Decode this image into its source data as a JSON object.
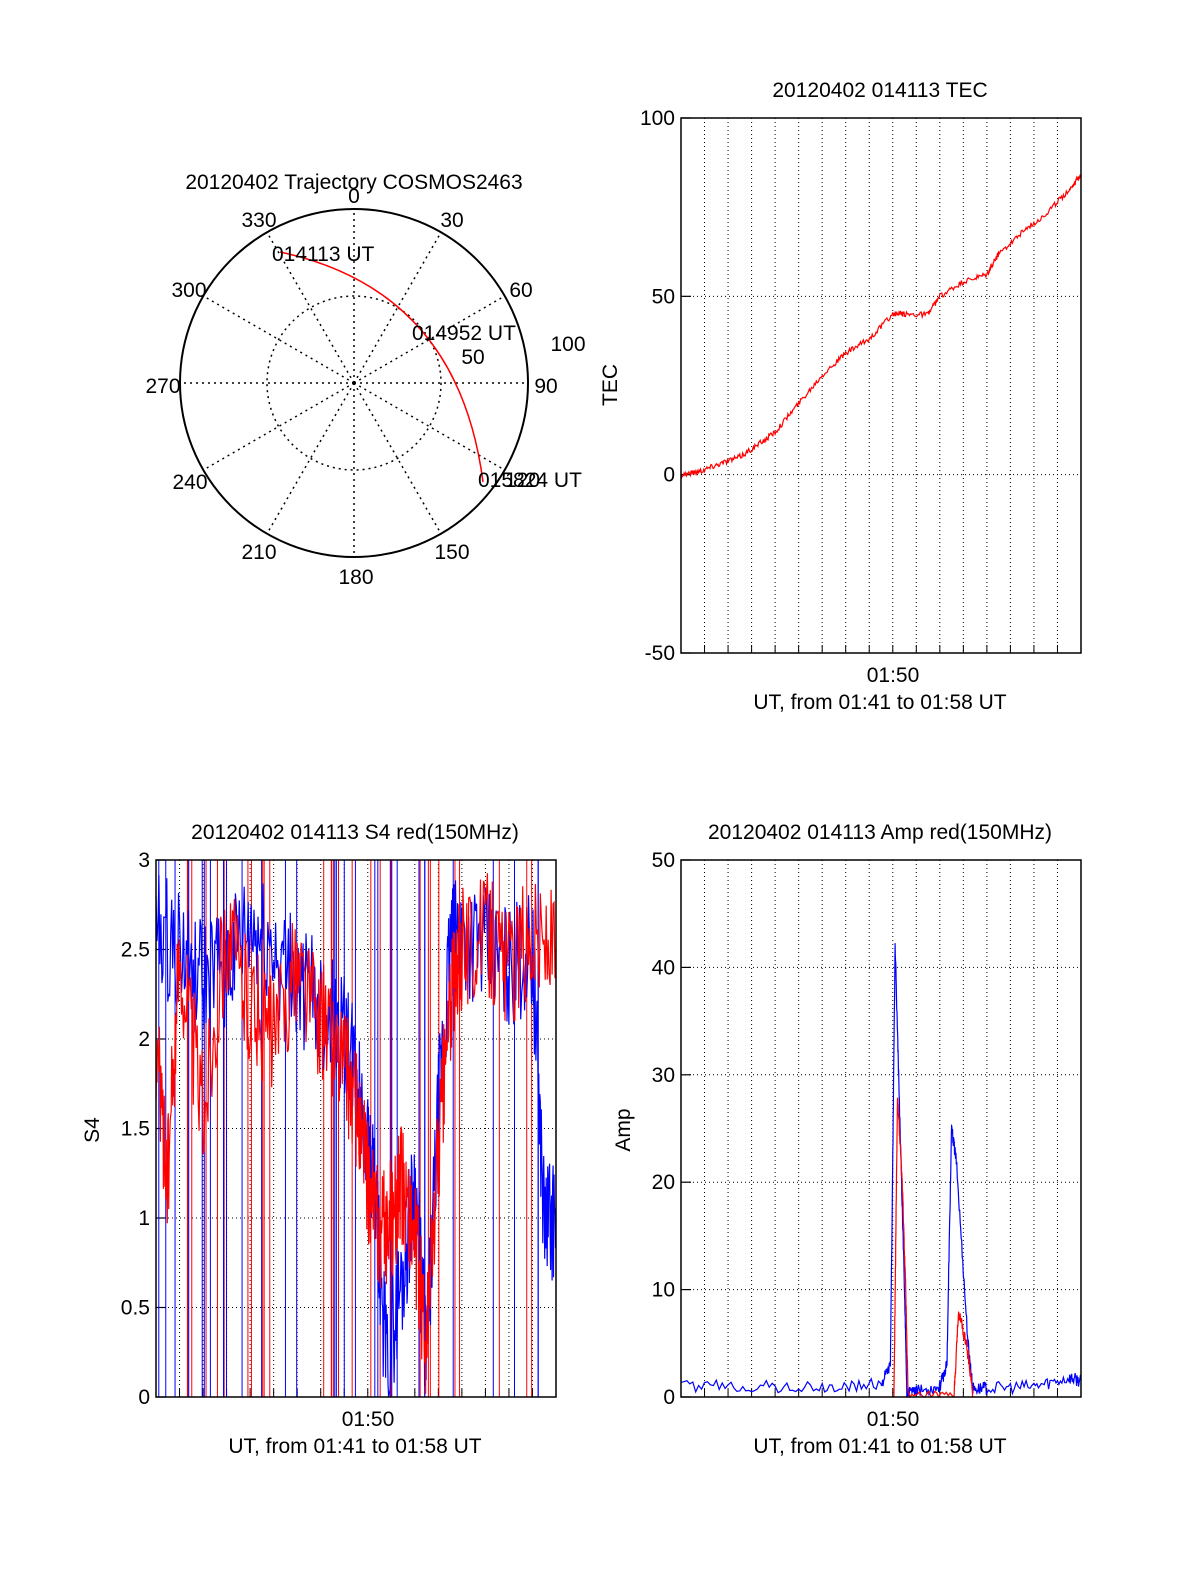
{
  "chart_data": [
    {
      "type": "polar-trajectory",
      "title": "20120402 Trajectory COSMOS2463",
      "azimuth_labels": [
        "0",
        "30",
        "60",
        "90",
        "150",
        "180",
        "210",
        "240",
        "270",
        "300",
        "330"
      ],
      "radial_labels": [
        "50",
        "100"
      ],
      "start_label": "014113 UT",
      "mid_label": "014952 UT",
      "end_label": "015824 UT",
      "end_overlap_label": "120",
      "colors": {
        "trajectory": "#ff0000",
        "axes": "#000000"
      }
    },
    {
      "type": "line",
      "title": "20120402 014113 TEC",
      "ylabel": "TEC",
      "xlabel": "UT, from 01:41 to 01:58 UT",
      "x_tick_label": "01:50",
      "yticks": [
        "100",
        "50",
        "0",
        "-50"
      ],
      "ylim": [
        -50,
        100
      ],
      "xlim_minutes": [
        0,
        17
      ],
      "series": [
        {
          "color": "#ff0000",
          "x": [
            0,
            0.8,
            1.6,
            2.5,
            3.2,
            4.0,
            5.0,
            6.0,
            7.0,
            8.0,
            9.0,
            9.5,
            10.5,
            11.0,
            12.0,
            13.0,
            13.5,
            14.5,
            15.5,
            16.5,
            17.0
          ],
          "y": [
            0,
            1,
            3,
            5,
            8,
            12,
            20,
            28,
            34,
            38,
            45,
            45,
            45,
            50,
            54,
            56,
            62,
            68,
            73,
            80,
            84
          ]
        }
      ]
    },
    {
      "type": "line",
      "title": "20120402 014113 S4 red(150MHz)",
      "ylabel": "S4",
      "xlabel": "UT, from 01:41 to 01:58 UT",
      "x_tick_label": "01:50",
      "yticks": [
        "3",
        "2.5",
        "2",
        "1.5",
        "1",
        "0.5",
        "0"
      ],
      "ylim": [
        0,
        3
      ],
      "xlim_minutes": [
        0,
        17
      ],
      "series": [
        {
          "color": "#0000ff",
          "x": [
            0,
            1,
            2,
            3,
            4,
            5,
            6,
            7,
            8,
            8.5,
            9,
            9.3,
            9.8,
            10.5,
            11,
            11.5,
            12,
            12.5,
            13,
            14,
            15,
            16,
            16.5,
            17
          ],
          "y": [
            2.6,
            2.5,
            2.3,
            2.4,
            2.6,
            2.5,
            2.3,
            2.2,
            2.0,
            1.8,
            1.4,
            1.1,
            0.2,
            0.7,
            1.2,
            0.2,
            1.6,
            2.5,
            2.6,
            2.5,
            2.4,
            2.5,
            1.0,
            1.0
          ]
        },
        {
          "color": "#ff0000",
          "x": [
            0,
            0.5,
            1,
            2,
            3,
            4,
            5,
            6,
            7,
            8,
            8.5,
            9,
            9.5,
            10,
            10.5,
            11,
            11.5,
            12,
            12.5,
            13,
            14,
            15,
            16,
            17
          ],
          "y": [
            2.0,
            1.2,
            2.5,
            1.6,
            2.6,
            2.2,
            2.0,
            2.4,
            2.1,
            1.9,
            1.6,
            1.2,
            0.9,
            1.0,
            1.2,
            0.9,
            0.3,
            1.4,
            2.2,
            2.5,
            2.6,
            2.4,
            2.6,
            2.5
          ]
        }
      ]
    },
    {
      "type": "line",
      "title": "20120402 014113 Amp red(150MHz)",
      "ylabel": "Amp",
      "xlabel": "UT, from 01:41 to 01:58 UT",
      "x_tick_label": "01:50",
      "yticks": [
        "50",
        "40",
        "30",
        "20",
        "10",
        "0"
      ],
      "ylim": [
        0,
        50
      ],
      "xlim_minutes": [
        0,
        17
      ],
      "series": [
        {
          "color": "#0000ff",
          "x": [
            0,
            3,
            6,
            8.5,
            8.9,
            9.1,
            9.25,
            9.5,
            9.6,
            10,
            11,
            11.3,
            11.5,
            11.7,
            12.2,
            12.4,
            13,
            15,
            16.5,
            17
          ],
          "y": [
            1,
            1,
            0.8,
            1.2,
            3,
            42,
            30,
            10,
            0.3,
            0.5,
            1,
            3,
            25,
            22,
            5,
            0.8,
            0.8,
            1,
            1.8,
            1.5
          ]
        },
        {
          "color": "#ff0000",
          "x": [
            9.05,
            9.2,
            9.4,
            9.55,
            9.65,
            11.6,
            11.8,
            12.2,
            12.4
          ],
          "y": [
            0,
            28,
            20,
            10,
            0,
            0,
            8,
            4,
            0
          ]
        }
      ]
    }
  ]
}
